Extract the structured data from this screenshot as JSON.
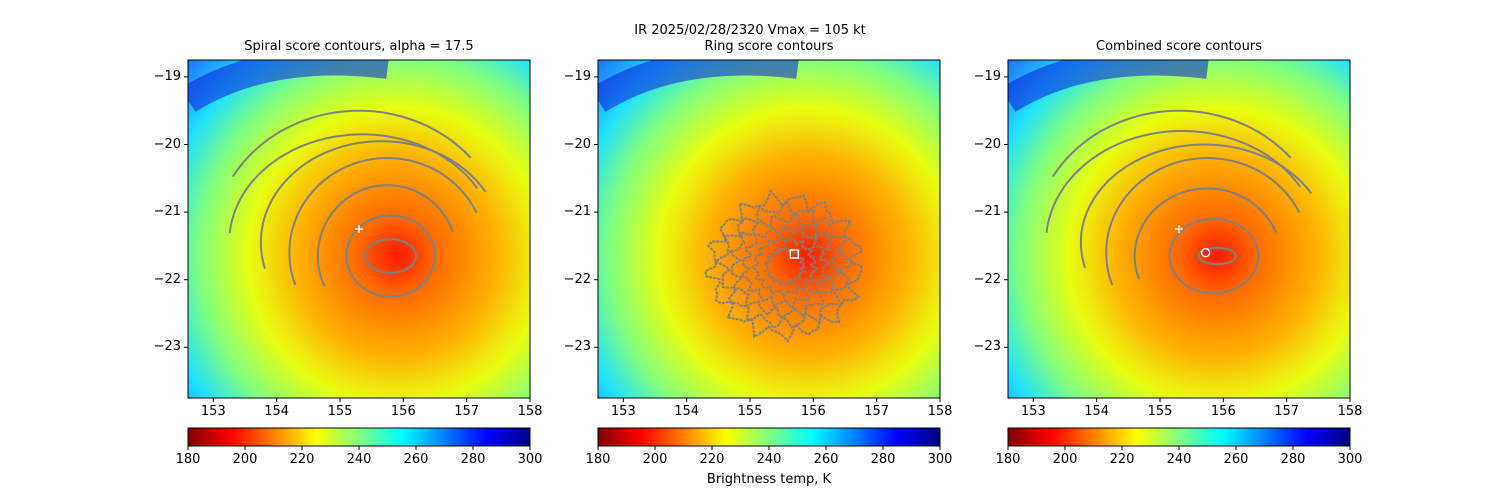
{
  "figure": {
    "suptitle_line1": "IR  2025/02/28/2320    Vmax = 105 kt",
    "colorbar_label": "Brightness temp, K",
    "colormap": [
      "#7f0000",
      "#ff0000",
      "#ff7f00",
      "#ffff00",
      "#7fff7f",
      "#00ffff",
      "#007fff",
      "#0000ff",
      "#00007f"
    ]
  },
  "chart_data": [
    {
      "type": "heatmap",
      "panel": "spiral",
      "title": "Spiral score contours, alpha = 17.5",
      "xlim": [
        152.6,
        158.0
      ],
      "ylim": [
        -23.75,
        -18.75
      ],
      "xticks": [
        153,
        154,
        155,
        156,
        157,
        158
      ],
      "yticks": [
        -19,
        -20,
        -21,
        -22,
        -23
      ],
      "xtick_labels": [
        "153",
        "154",
        "155",
        "156",
        "157",
        "158"
      ],
      "ytick_labels": [
        "−19",
        "−20",
        "−21",
        "−22",
        "−23"
      ],
      "colorbar": {
        "range": [
          180,
          300
        ],
        "ticks": [
          "180",
          "200",
          "220",
          "240",
          "260",
          "280",
          "300"
        ],
        "cmap": "jet_r"
      },
      "storm_center": [
        155.9,
        -21.65
      ],
      "markers": [
        {
          "shape": "plus",
          "x": 155.3,
          "y": -21.25,
          "color": "#ffffff"
        }
      ],
      "contour_color": "#808080",
      "contours": [
        {
          "kind": "closed",
          "center": [
            155.8,
            -21.65
          ],
          "rx": 0.4,
          "ry": 0.25
        },
        {
          "kind": "closed",
          "center": [
            155.8,
            -21.65
          ],
          "rx": 0.7,
          "ry": 0.6
        },
        {
          "kind": "arc",
          "center": [
            155.75,
            -21.65
          ],
          "rx": 1.1,
          "ry": 1.05,
          "from_deg": 205,
          "to_deg": 20
        },
        {
          "kind": "arc",
          "center": [
            155.75,
            -21.6
          ],
          "rx": 1.55,
          "ry": 1.4,
          "from_deg": 200,
          "to_deg": 25
        },
        {
          "kind": "arc",
          "center": [
            155.65,
            -21.45
          ],
          "rx": 1.9,
          "ry": 1.5,
          "from_deg": 195,
          "to_deg": 30
        },
        {
          "kind": "arc",
          "center": [
            155.35,
            -21.45
          ],
          "rx": 2.1,
          "ry": 1.6,
          "from_deg": 175,
          "to_deg": 30
        },
        {
          "kind": "arc",
          "center": [
            155.3,
            -21.45
          ],
          "rx": 2.3,
          "ry": 1.95,
          "from_deg": 150,
          "to_deg": 40
        }
      ]
    },
    {
      "type": "heatmap",
      "panel": "ring",
      "title": "Ring score contours",
      "xlim": [
        152.6,
        158.0
      ],
      "ylim": [
        -23.75,
        -18.75
      ],
      "xticks": [
        153,
        154,
        155,
        156,
        157,
        158
      ],
      "yticks": [
        -19,
        -20,
        -21,
        -22,
        -23
      ],
      "xtick_labels": [
        "153",
        "154",
        "155",
        "156",
        "157",
        "158"
      ],
      "ytick_labels": [
        "−19",
        "−20",
        "−21",
        "−22",
        "−23"
      ],
      "colorbar": {
        "range": [
          180,
          300
        ],
        "ticks": [
          "180",
          "200",
          "220",
          "240",
          "260",
          "280",
          "300"
        ],
        "cmap": "jet_r"
      },
      "storm_center": [
        155.9,
        -21.65
      ],
      "markers": [
        {
          "shape": "square",
          "x": 155.7,
          "y": -21.62,
          "color": "#ffffff"
        }
      ],
      "contour_color": "#808080",
      "ring_contour_region": {
        "center": [
          155.55,
          -21.8
        ],
        "rx": 1.15,
        "ry": 1.0
      }
    },
    {
      "type": "heatmap",
      "panel": "combined",
      "title": "Combined score contours",
      "xlim": [
        152.6,
        158.0
      ],
      "ylim": [
        -23.75,
        -18.75
      ],
      "xticks": [
        153,
        154,
        155,
        156,
        157,
        158
      ],
      "yticks": [
        -19,
        -20,
        -21,
        -22,
        -23
      ],
      "xtick_labels": [
        "153",
        "154",
        "155",
        "156",
        "157",
        "158"
      ],
      "ytick_labels": [
        "−19",
        "−20",
        "−21",
        "−22",
        "−23"
      ],
      "colorbar": {
        "range": [
          180,
          300
        ],
        "ticks": [
          "180",
          "200",
          "220",
          "240",
          "260",
          "280",
          "300"
        ],
        "cmap": "jet_r"
      },
      "storm_center": [
        155.9,
        -21.65
      ],
      "markers": [
        {
          "shape": "plus",
          "x": 155.3,
          "y": -21.25,
          "color": "#ffffff"
        },
        {
          "shape": "circle",
          "x": 155.72,
          "y": -21.6,
          "color": "#ffffff"
        }
      ],
      "contour_color": "#808080",
      "contours": [
        {
          "kind": "closed",
          "center": [
            155.9,
            -21.65
          ],
          "rx": 0.3,
          "ry": 0.12
        },
        {
          "kind": "closed",
          "center": [
            155.85,
            -21.65
          ],
          "rx": 0.7,
          "ry": 0.55
        },
        {
          "kind": "arc",
          "center": [
            155.75,
            -21.65
          ],
          "rx": 1.15,
          "ry": 1.0,
          "from_deg": 200,
          "to_deg": 20
        },
        {
          "kind": "arc",
          "center": [
            155.75,
            -21.6
          ],
          "rx": 1.6,
          "ry": 1.4,
          "from_deg": 200,
          "to_deg": 25
        },
        {
          "kind": "arc",
          "center": [
            155.7,
            -21.45
          ],
          "rx": 1.95,
          "ry": 1.45,
          "from_deg": 195,
          "to_deg": 30
        },
        {
          "kind": "arc",
          "center": [
            155.35,
            -21.45
          ],
          "rx": 2.15,
          "ry": 1.65,
          "from_deg": 175,
          "to_deg": 30
        },
        {
          "kind": "arc",
          "center": [
            155.3,
            -21.45
          ],
          "rx": 2.3,
          "ry": 1.95,
          "from_deg": 150,
          "to_deg": 40
        }
      ]
    }
  ]
}
